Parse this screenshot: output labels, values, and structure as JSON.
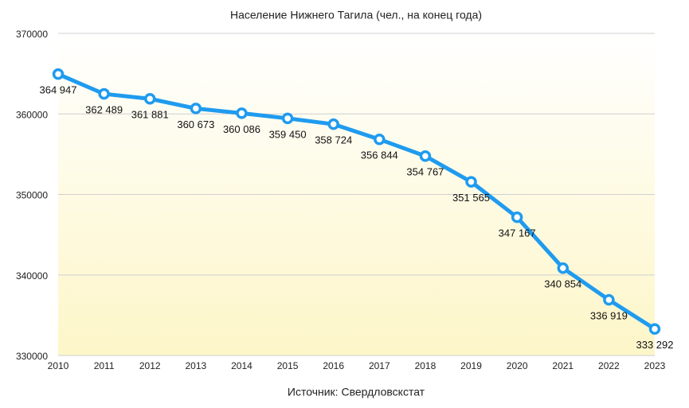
{
  "chart_data": {
    "type": "line",
    "title": "Население Нижнего Тагила (чел., на конец года)",
    "source": "Источник: Свердловскстат",
    "categories": [
      "2010",
      "2011",
      "2012",
      "2013",
      "2014",
      "2015",
      "2016",
      "2017",
      "2018",
      "2019",
      "2020",
      "2021",
      "2022",
      "2023"
    ],
    "series": [
      {
        "name": "Население",
        "color": "#1f9bef",
        "values": [
          364947,
          362489,
          361881,
          360673,
          360086,
          359450,
          358724,
          356844,
          354767,
          351565,
          347167,
          340854,
          336919,
          333292
        ],
        "value_labels": [
          "364 947",
          "362 489",
          "361 881",
          "360 673",
          "360 086",
          "359 450",
          "358 724",
          "356 844",
          "354 767",
          "351 565",
          "347 167",
          "340 854",
          "336 919",
          "333 292"
        ]
      }
    ],
    "ylim": [
      330000,
      370000
    ],
    "yticks": [
      330000,
      340000,
      350000,
      360000,
      370000
    ],
    "grid": true
  }
}
